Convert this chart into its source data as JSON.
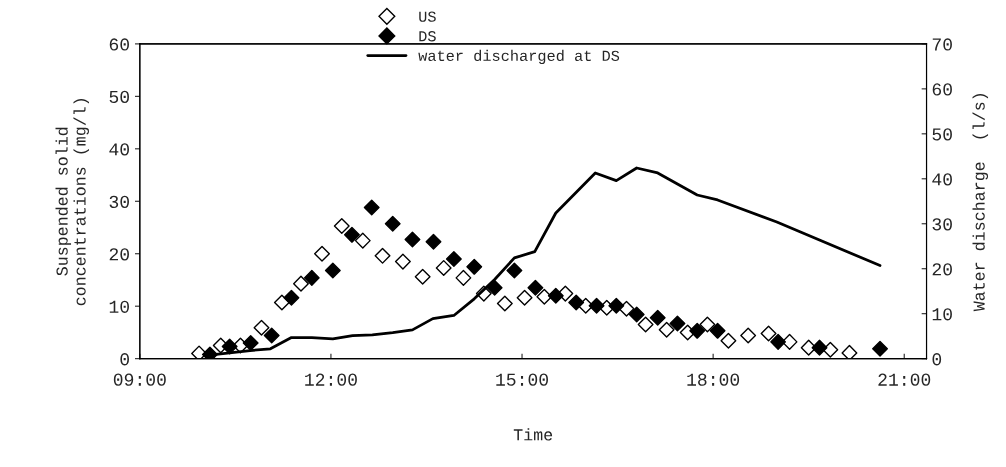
{
  "chart_data": {
    "type": "scatter",
    "xlabel": "Time",
    "ylabel": "Suspended solid\nconcentrations (mg/l)",
    "y2label": "Water discharge  (l/s)",
    "xlim": [
      9,
      21.35
    ],
    "xticks": [
      {
        "value": 9,
        "label": "09:00"
      },
      {
        "value": 12,
        "label": "12:00"
      },
      {
        "value": 15,
        "label": "15:00"
      },
      {
        "value": 18,
        "label": "18:00"
      },
      {
        "value": 21,
        "label": "21:00"
      }
    ],
    "ylim": [
      0,
      60
    ],
    "yticks": [
      0,
      10,
      20,
      30,
      40,
      50,
      60
    ],
    "y2lim": [
      0,
      70
    ],
    "y2ticks": [
      0,
      10,
      20,
      30,
      40,
      50,
      60,
      70
    ],
    "legend": "top",
    "grid": false,
    "series": [
      {
        "name": "US",
        "marker": "diamond",
        "color": "#ffffff",
        "x": [
          9.93,
          10.27,
          10.58,
          10.91,
          11.23,
          11.53,
          11.86,
          12.17,
          12.5,
          12.81,
          13.13,
          13.44,
          13.77,
          14.08,
          14.4,
          14.73,
          15.04,
          15.35,
          15.68,
          16.0,
          16.33,
          16.64,
          16.94,
          17.27,
          17.6,
          17.91,
          18.24,
          18.55,
          18.87,
          19.2,
          19.5,
          19.84,
          20.14
        ],
        "values": [
          1.0,
          2.5,
          2.5,
          5.9,
          10.7,
          14.3,
          20.0,
          25.3,
          22.5,
          19.6,
          18.5,
          15.6,
          17.3,
          15.4,
          12.4,
          10.5,
          11.6,
          11.8,
          12.4,
          10.1,
          9.7,
          9.5,
          6.5,
          5.5,
          5.0,
          6.5,
          3.4,
          4.4,
          4.8,
          3.2,
          2.1,
          1.7,
          1.1
        ]
      },
      {
        "name": "DS",
        "marker": "diamond",
        "color": "#000000",
        "x": [
          10.1,
          10.41,
          10.74,
          11.07,
          11.38,
          11.7,
          12.03,
          12.33,
          12.64,
          12.97,
          13.28,
          13.61,
          13.93,
          14.25,
          14.57,
          14.88,
          15.21,
          15.53,
          15.85,
          16.17,
          16.48,
          16.8,
          17.13,
          17.44,
          17.75,
          18.07,
          19.02,
          19.67,
          20.62
        ],
        "values": [
          0.8,
          2.3,
          3.0,
          4.4,
          11.6,
          15.4,
          16.8,
          23.6,
          28.8,
          25.7,
          22.7,
          22.3,
          19.0,
          17.5,
          13.5,
          16.8,
          13.5,
          12.0,
          10.7,
          10.1,
          10.1,
          8.4,
          7.8,
          6.7,
          5.3,
          5.3,
          3.2,
          2.1,
          1.9
        ]
      },
      {
        "name": "water discharged at DS",
        "type": "line",
        "marker": "none",
        "axis": "y2",
        "color": "#000000",
        "x": [
          10.02,
          10.73,
          11.05,
          11.38,
          11.7,
          12.03,
          12.34,
          12.65,
          12.97,
          13.28,
          13.6,
          13.93,
          14.25,
          14.57,
          14.88,
          15.2,
          15.53,
          16.15,
          16.48,
          16.8,
          17.13,
          17.75,
          18.07,
          19.0,
          20.62
        ],
        "values": [
          0.7,
          1.8,
          2.2,
          4.7,
          4.7,
          4.4,
          5.1,
          5.3,
          5.8,
          6.4,
          8.9,
          9.6,
          13.3,
          17.6,
          22.4,
          23.8,
          32.4,
          41.3,
          39.6,
          42.4,
          41.3,
          36.4,
          35.3,
          30.4,
          20.7
        ]
      }
    ]
  }
}
